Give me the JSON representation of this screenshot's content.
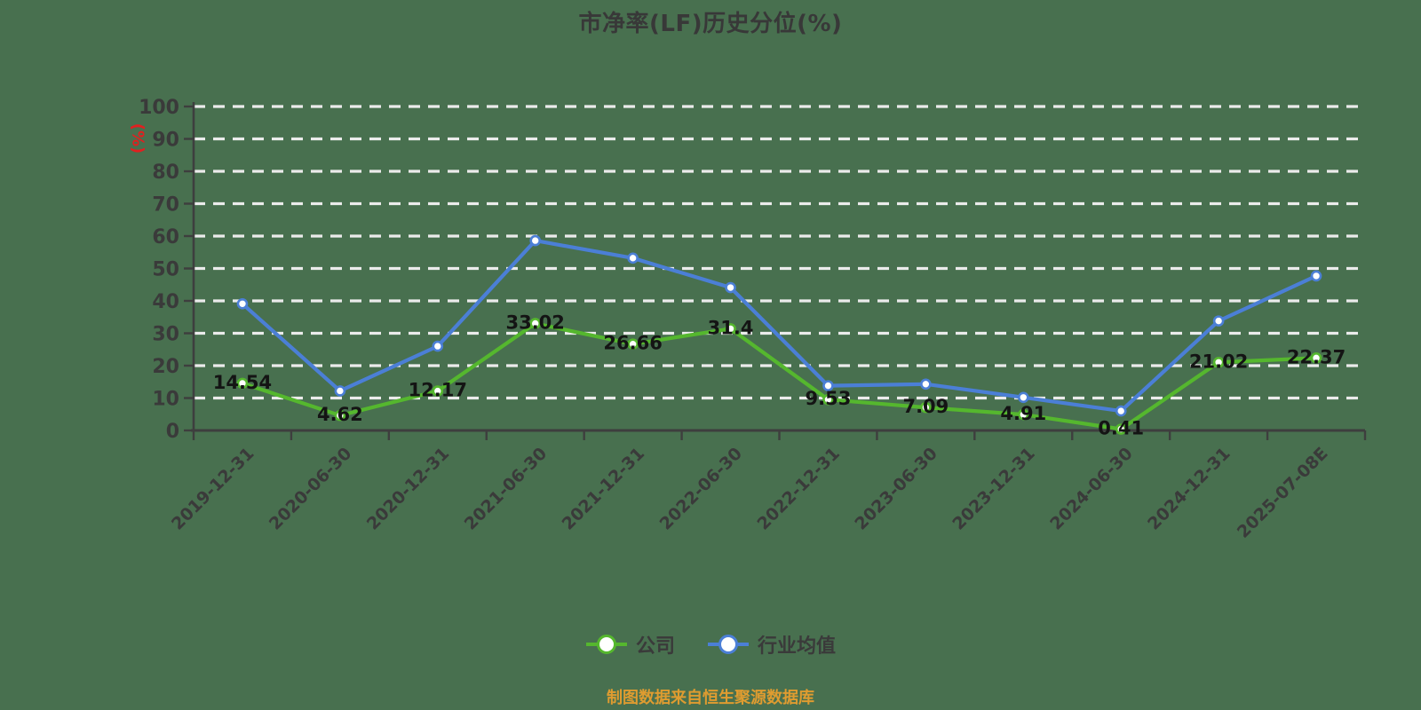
{
  "chart_data": {
    "type": "line",
    "title": "市净率(LF)历史分位(%)",
    "ylabel": "(%)",
    "categories": [
      "2019-12-31",
      "2020-06-30",
      "2020-12-31",
      "2021-06-30",
      "2021-12-31",
      "2022-06-30",
      "2022-12-31",
      "2023-06-30",
      "2023-12-31",
      "2024-06-30",
      "2024-12-31",
      "2025-07-08E"
    ],
    "series": [
      {
        "key": "company",
        "name": "公司",
        "color": "#55b72e",
        "show_point_labels": true,
        "values": [
          14.54,
          4.62,
          12.17,
          33.02,
          26.66,
          31.4,
          9.53,
          7.09,
          4.91,
          0.41,
          21.02,
          22.37
        ]
      },
      {
        "key": "industry-average",
        "name": "行业均值",
        "color": "#4b7fd6",
        "show_point_labels": false,
        "values": [
          39.1,
          12.2,
          26.0,
          58.6,
          53.2,
          44.1,
          13.8,
          14.3,
          10.2,
          6.0,
          33.8,
          47.7
        ]
      }
    ],
    "ylim": [
      0,
      100
    ],
    "ytick_step": 10,
    "grid": "dashed-horizontal",
    "legend_position": "bottom"
  },
  "footer": {
    "text": "制图数据来自恒生聚源数据库"
  },
  "colors": {
    "background": "#48704f",
    "axis": "#3e3e3e",
    "grid": "#ebebeb",
    "tick_label": "#3a3a3a",
    "data_label": "#141414",
    "title": "#383838",
    "ylabel": "#e02020",
    "legend_text": "#3a3a3a",
    "footer_text": "#df9c30",
    "marker_fill": "#ffffff"
  }
}
